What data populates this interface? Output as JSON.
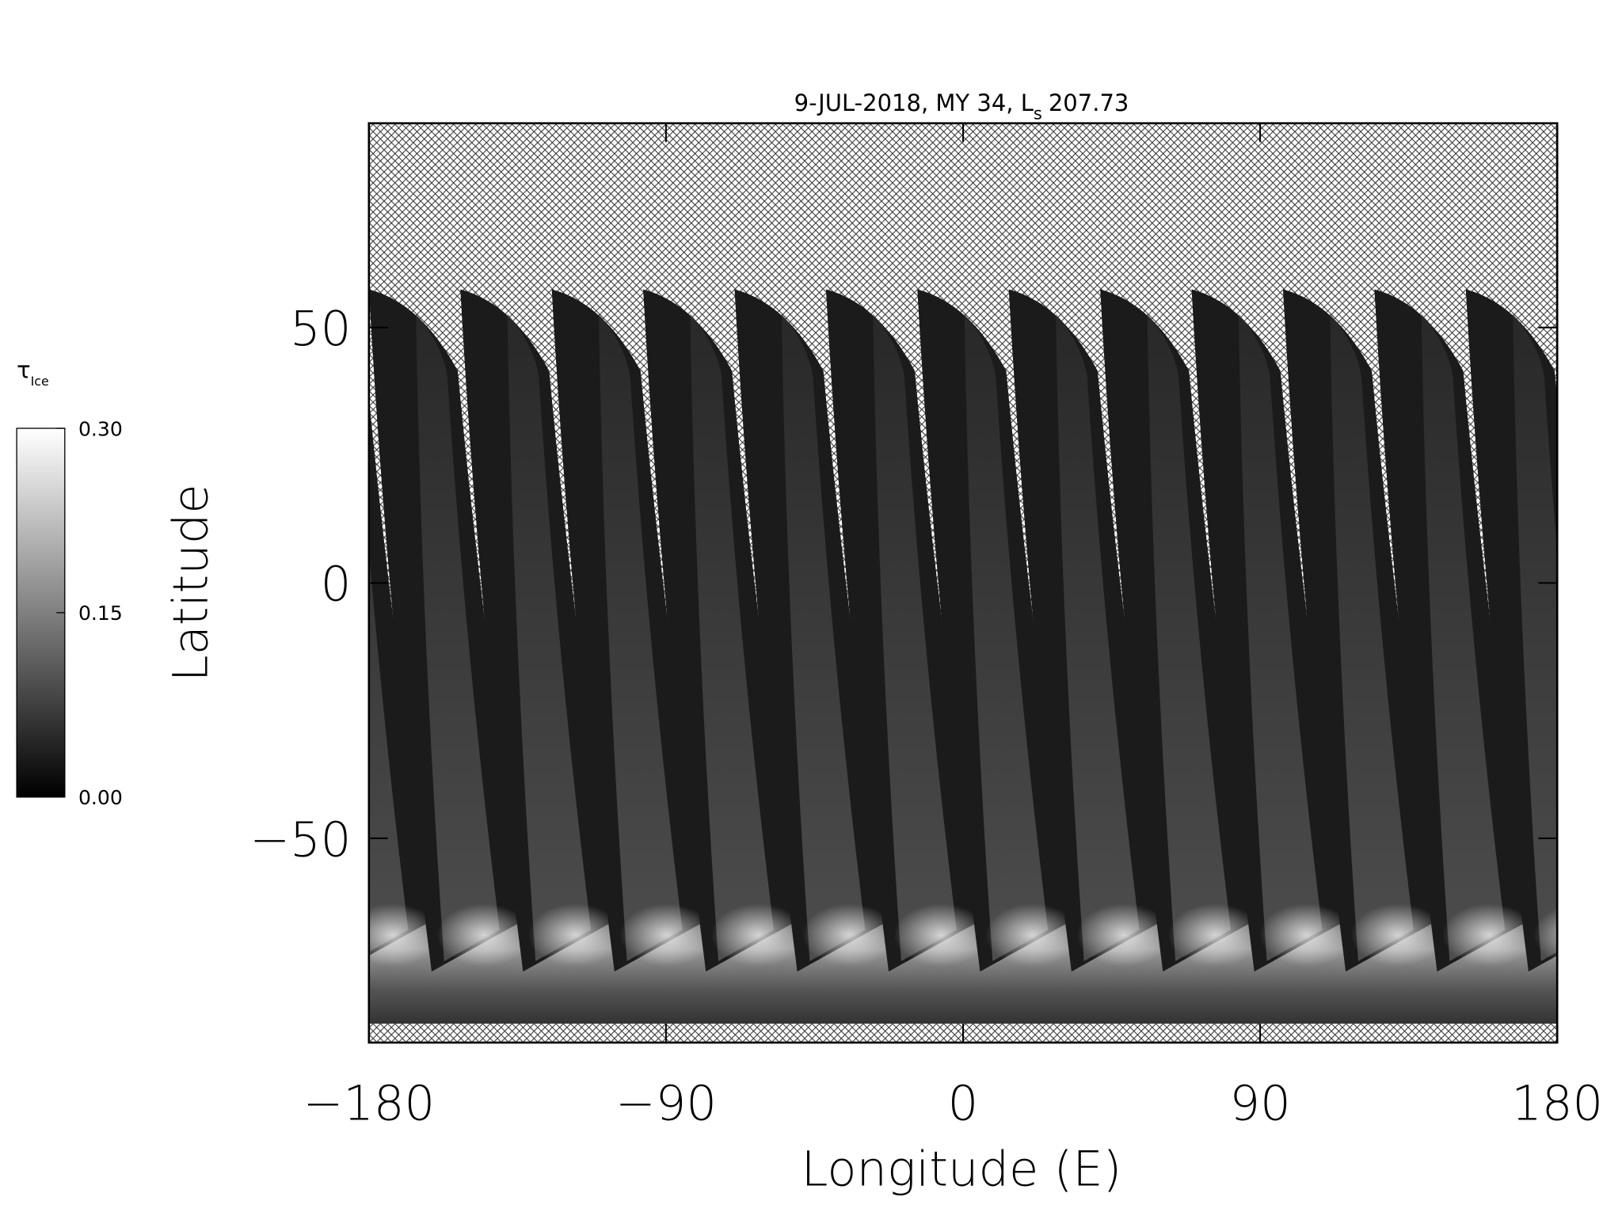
{
  "chart_data": {
    "type": "map",
    "title": {
      "text": "9-JUL-2018, MY 34,  L",
      "subscript": "s",
      "value": "207.73"
    },
    "xlabel": "Longitude (E)",
    "ylabel": "Latitude",
    "xlim": [
      -180,
      180
    ],
    "xticks": [
      {
        "value": -180,
        "label": "−180"
      },
      {
        "value": -90,
        "label": "−90"
      },
      0,
      90,
      180
    ],
    "ylim": [
      -90,
      90
    ],
    "yticks": [
      {
        "value": -50,
        "label": "−50"
      },
      0,
      50
    ],
    "colorbar": {
      "label": "τ",
      "label_subscript": "Ice",
      "lim": [
        0,
        0.3
      ],
      "ticks": [
        {
          "value": 0,
          "label": "0.00"
        },
        {
          "value": 0.15,
          "label": "0.15"
        },
        {
          "value": 0.3,
          "label": "0.30"
        }
      ]
    }
  }
}
